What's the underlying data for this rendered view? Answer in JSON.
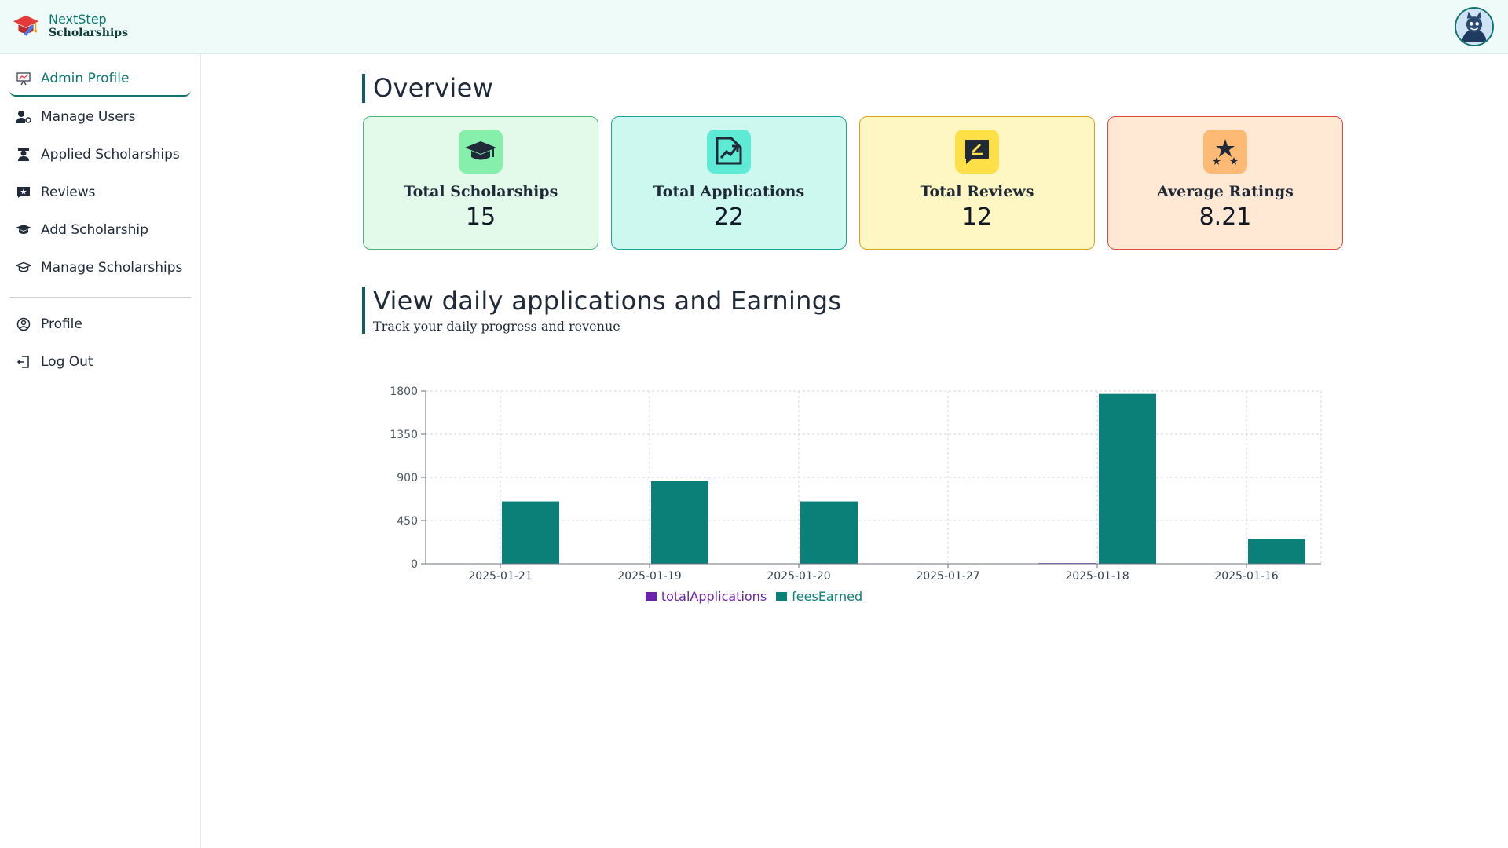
{
  "brand": {
    "name": "NextStep",
    "sub": "Scholarships"
  },
  "sidebar": {
    "items": [
      {
        "label": "Admin Profile",
        "icon": "presentation-chart-icon"
      },
      {
        "label": "Manage Users",
        "icon": "user-cog-icon"
      },
      {
        "label": "Applied Scholarships",
        "icon": "graduate-icon"
      },
      {
        "label": "Reviews",
        "icon": "review-icon"
      },
      {
        "label": "Add Scholarship",
        "icon": "mortarboard-icon"
      },
      {
        "label": "Manage Scholarships",
        "icon": "mortarboard-outline-icon"
      }
    ],
    "secondary": [
      {
        "label": "Profile",
        "icon": "user-circle-icon"
      },
      {
        "label": "Log Out",
        "icon": "logout-icon"
      }
    ]
  },
  "overview": {
    "title": "Overview",
    "cards": [
      {
        "label": "Total Scholarships",
        "value": "15",
        "icon": "graduation-cap-icon",
        "bg": "#e3f9ea",
        "border": "#46b978",
        "icon_bg": "#86efac"
      },
      {
        "label": "Total Applications",
        "value": "22",
        "icon": "chart-up-icon",
        "bg": "#cdf8ef",
        "border": "#1ea39a",
        "icon_bg": "#5eead4"
      },
      {
        "label": "Total Reviews",
        "value": "12",
        "icon": "rating-edit-icon",
        "bg": "#fef7c3",
        "border": "#d9a21b",
        "icon_bg": "#fde047"
      },
      {
        "label": "Average Ratings",
        "value": "8.21",
        "icon": "stars-icon",
        "bg": "#ffe9d4",
        "border": "#e0483d",
        "icon_bg": "#fdba74"
      }
    ]
  },
  "daily": {
    "title": "View daily applications and Earnings",
    "subtitle": "Track your daily progress and revenue"
  },
  "chart_data": {
    "type": "bar",
    "categories": [
      "2025-01-21",
      "2025-01-19",
      "2025-01-20",
      "2025-01-27",
      "2025-01-18",
      "2025-01-16"
    ],
    "series": [
      {
        "name": "totalApplications",
        "values": [
          2,
          2,
          2,
          1,
          7,
          1
        ],
        "color": "#6b21a8"
      },
      {
        "name": "feesEarned",
        "values": [
          650,
          860,
          650,
          0,
          1770,
          260
        ],
        "color": "#0b8079"
      }
    ],
    "yticks": [
      "0",
      "450",
      "900",
      "1350",
      "1800"
    ],
    "ylim": [
      0,
      1800
    ],
    "grid": true,
    "legend": "bottom"
  }
}
